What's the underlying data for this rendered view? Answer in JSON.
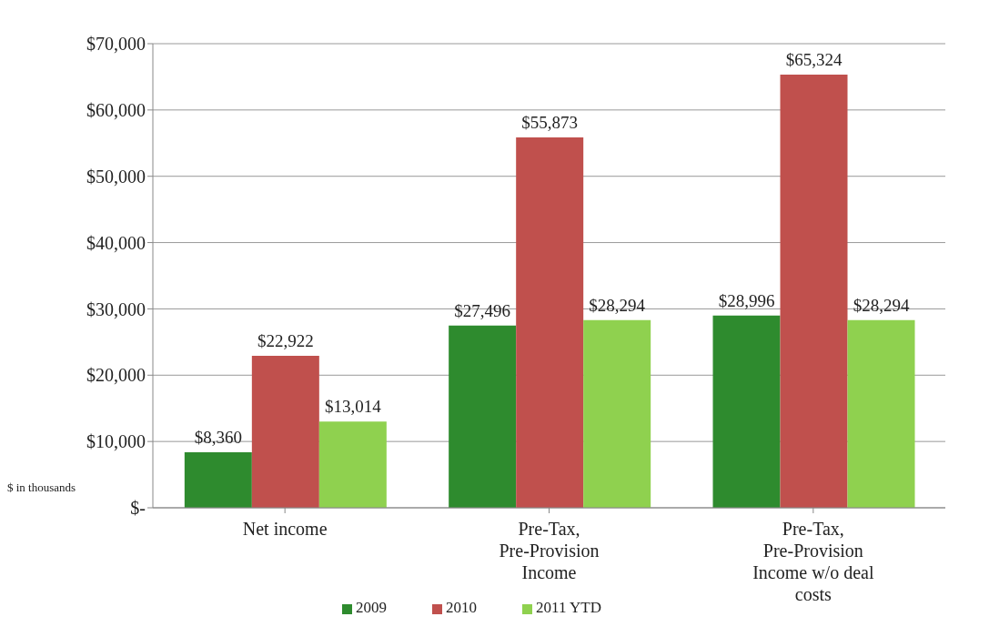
{
  "chart_data": {
    "type": "bar",
    "categories": [
      "Net income",
      "Pre-Tax, Pre-Provision Income",
      "Pre-Tax, Pre-Provision Income w/o deal costs"
    ],
    "series": [
      {
        "name": "2009",
        "color": "#2e8b2e",
        "values": [
          8360,
          27496,
          28996
        ],
        "value_labels": [
          "$8,360",
          "$27,496",
          "$28,996"
        ]
      },
      {
        "name": "2010",
        "color": "#c0504d",
        "values": [
          22922,
          55873,
          65324
        ],
        "value_labels": [
          "$22,922",
          "$55,873",
          "$65,324"
        ]
      },
      {
        "name": "2011 YTD",
        "color": "#8fd14f",
        "values": [
          13014,
          28294,
          28294
        ],
        "value_labels": [
          "$13,014",
          "$28,294",
          "$28,294"
        ]
      }
    ],
    "ylim": [
      0,
      70000
    ],
    "yticks": [
      {
        "value": 0,
        "label": "$-"
      },
      {
        "value": 10000,
        "label": "$10,000"
      },
      {
        "value": 20000,
        "label": "$20,000"
      },
      {
        "value": 30000,
        "label": "$30,000"
      },
      {
        "value": 40000,
        "label": "$40,000"
      },
      {
        "value": 50000,
        "label": "$50,000"
      },
      {
        "value": 60000,
        "label": "$60,000"
      },
      {
        "value": 70000,
        "label": "$70,000"
      }
    ],
    "grid": "y",
    "legend": "bottom",
    "annotations": [
      "$ in thousands"
    ]
  }
}
